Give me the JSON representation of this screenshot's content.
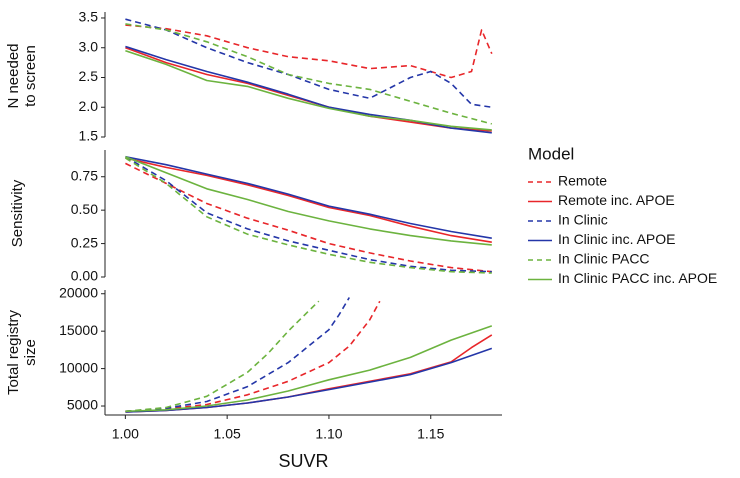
{
  "chart_data": {
    "type": "line",
    "xlabel": "SUVR",
    "xlim": [
      0.99,
      1.185
    ],
    "xticks": [
      "1.00",
      "1.05",
      "1.10",
      "1.15"
    ],
    "xtick_values": [
      1.0,
      1.05,
      1.1,
      1.15
    ],
    "legend": {
      "title": "Model",
      "placement": "right",
      "entries": [
        {
          "label": "Remote",
          "color": "#e8262a",
          "dash": "dashed"
        },
        {
          "label": "Remote inc. APOE",
          "color": "#e8262a",
          "dash": "solid"
        },
        {
          "label": "In Clinic",
          "color": "#2436a8",
          "dash": "dashed"
        },
        {
          "label": "In Clinic inc. APOE",
          "color": "#2436a8",
          "dash": "solid"
        },
        {
          "label": "In Clinic PACC",
          "color": "#6cb33f",
          "dash": "dashed"
        },
        {
          "label": "In Clinic PACC inc. APOE",
          "color": "#6cb33f",
          "dash": "solid"
        }
      ]
    },
    "panels": [
      {
        "ylabel": [
          "N needed",
          "to screen"
        ],
        "ylim": [
          1.5,
          3.55
        ],
        "yticks": [
          "1.5",
          "2.0",
          "2.5",
          "3.0",
          "3.5"
        ],
        "ytick_values": [
          1.5,
          2.0,
          2.5,
          3.0,
          3.5
        ],
        "series": [
          {
            "name": "Remote",
            "x": [
              1.0,
              1.02,
              1.04,
              1.06,
              1.08,
              1.1,
              1.12,
              1.14,
              1.15,
              1.16,
              1.17,
              1.175,
              1.18
            ],
            "y": [
              3.38,
              3.32,
              3.2,
              3.0,
              2.85,
              2.78,
              2.65,
              2.7,
              2.6,
              2.5,
              2.6,
              3.3,
              2.9
            ]
          },
          {
            "name": "Remote inc. APOE",
            "x": [
              1.0,
              1.02,
              1.04,
              1.06,
              1.08,
              1.1,
              1.12,
              1.14,
              1.16,
              1.18
            ],
            "y": [
              3.0,
              2.75,
              2.55,
              2.4,
              2.2,
              2.0,
              1.85,
              1.75,
              1.65,
              1.6
            ]
          },
          {
            "name": "In Clinic",
            "x": [
              1.0,
              1.02,
              1.04,
              1.06,
              1.08,
              1.1,
              1.12,
              1.14,
              1.15,
              1.16,
              1.17,
              1.18
            ],
            "y": [
              3.48,
              3.3,
              3.0,
              2.75,
              2.55,
              2.3,
              2.15,
              2.5,
              2.6,
              2.4,
              2.05,
              2.0
            ]
          },
          {
            "name": "In Clinic inc. APOE",
            "x": [
              1.0,
              1.02,
              1.04,
              1.06,
              1.08,
              1.1,
              1.12,
              1.14,
              1.16,
              1.18
            ],
            "y": [
              3.02,
              2.8,
              2.6,
              2.42,
              2.22,
              2.0,
              1.88,
              1.78,
              1.65,
              1.57
            ]
          },
          {
            "name": "In Clinic PACC",
            "x": [
              1.0,
              1.02,
              1.04,
              1.06,
              1.08,
              1.1,
              1.12,
              1.14,
              1.16,
              1.18
            ],
            "y": [
              3.4,
              3.3,
              3.1,
              2.85,
              2.55,
              2.4,
              2.3,
              2.1,
              1.9,
              1.72
            ]
          },
          {
            "name": "In Clinic PACC inc. APOE",
            "x": [
              1.0,
              1.02,
              1.04,
              1.06,
              1.08,
              1.1,
              1.12,
              1.14,
              1.16,
              1.18
            ],
            "y": [
              2.95,
              2.72,
              2.45,
              2.35,
              2.15,
              1.98,
              1.85,
              1.78,
              1.68,
              1.62
            ]
          }
        ]
      },
      {
        "ylabel": [
          "Sensitivity"
        ],
        "ylim": [
          0.0,
          0.95
        ],
        "yticks": [
          "0.00",
          "0.25",
          "0.50",
          "0.75"
        ],
        "ytick_values": [
          0.0,
          0.25,
          0.5,
          0.75
        ],
        "series": [
          {
            "name": "Remote",
            "x": [
              1.0,
              1.02,
              1.04,
              1.06,
              1.08,
              1.1,
              1.12,
              1.14,
              1.16,
              1.18
            ],
            "y": [
              0.85,
              0.7,
              0.55,
              0.44,
              0.35,
              0.25,
              0.18,
              0.12,
              0.07,
              0.04
            ]
          },
          {
            "name": "Remote inc. APOE",
            "x": [
              1.0,
              1.02,
              1.04,
              1.06,
              1.08,
              1.1,
              1.12,
              1.14,
              1.16,
              1.18
            ],
            "y": [
              0.89,
              0.82,
              0.76,
              0.69,
              0.61,
              0.52,
              0.46,
              0.38,
              0.31,
              0.26
            ]
          },
          {
            "name": "In Clinic",
            "x": [
              1.0,
              1.02,
              1.04,
              1.06,
              1.08,
              1.1,
              1.12,
              1.14,
              1.16,
              1.18
            ],
            "y": [
              0.9,
              0.72,
              0.48,
              0.36,
              0.27,
              0.2,
              0.13,
              0.08,
              0.05,
              0.04
            ]
          },
          {
            "name": "In Clinic inc. APOE",
            "x": [
              1.0,
              1.02,
              1.04,
              1.06,
              1.08,
              1.1,
              1.12,
              1.14,
              1.16,
              1.18
            ],
            "y": [
              0.9,
              0.84,
              0.77,
              0.7,
              0.62,
              0.53,
              0.47,
              0.4,
              0.34,
              0.29
            ]
          },
          {
            "name": "In Clinic PACC",
            "x": [
              1.0,
              1.02,
              1.04,
              1.06,
              1.08,
              1.1,
              1.12,
              1.14,
              1.16,
              1.18
            ],
            "y": [
              0.89,
              0.7,
              0.45,
              0.32,
              0.24,
              0.17,
              0.11,
              0.07,
              0.04,
              0.03
            ]
          },
          {
            "name": "In Clinic PACC inc. APOE",
            "x": [
              1.0,
              1.02,
              1.04,
              1.06,
              1.08,
              1.1,
              1.12,
              1.14,
              1.16,
              1.18
            ],
            "y": [
              0.9,
              0.78,
              0.66,
              0.58,
              0.49,
              0.42,
              0.36,
              0.31,
              0.27,
              0.24
            ]
          }
        ]
      },
      {
        "ylabel": [
          "Total registry",
          "size"
        ],
        "ylim": [
          3800,
          20500
        ],
        "yticks": [
          "5000",
          "10000",
          "15000",
          "20000"
        ],
        "ytick_values": [
          5000,
          10000,
          15000,
          20000
        ],
        "series": [
          {
            "name": "Remote",
            "x": [
              1.0,
              1.02,
              1.04,
              1.06,
              1.08,
              1.1,
              1.11,
              1.12,
              1.125
            ],
            "y": [
              4300,
              4600,
              5200,
              6500,
              8300,
              10800,
              13000,
              16500,
              19000
            ]
          },
          {
            "name": "Remote inc. APOE",
            "x": [
              1.0,
              1.02,
              1.04,
              1.06,
              1.08,
              1.1,
              1.12,
              1.14,
              1.16,
              1.17,
              1.18
            ],
            "y": [
              4200,
              4400,
              4800,
              5400,
              6200,
              7300,
              8300,
              9300,
              10900,
              12800,
              14500
            ]
          },
          {
            "name": "In Clinic",
            "x": [
              1.0,
              1.02,
              1.04,
              1.06,
              1.08,
              1.09,
              1.1,
              1.105,
              1.11
            ],
            "y": [
              4300,
              4700,
              5600,
              7600,
              10800,
              13000,
              15200,
              17200,
              19500
            ]
          },
          {
            "name": "In Clinic inc. APOE",
            "x": [
              1.0,
              1.02,
              1.04,
              1.06,
              1.08,
              1.1,
              1.12,
              1.14,
              1.16,
              1.18
            ],
            "y": [
              4200,
              4400,
              4800,
              5400,
              6200,
              7200,
              8200,
              9200,
              10800,
              12700
            ]
          },
          {
            "name": "In Clinic PACC",
            "x": [
              1.0,
              1.02,
              1.04,
              1.06,
              1.07,
              1.08,
              1.09,
              1.095
            ],
            "y": [
              4300,
              4800,
              6300,
              9500,
              12000,
              15000,
              17700,
              19000
            ]
          },
          {
            "name": "In Clinic PACC inc. APOE",
            "x": [
              1.0,
              1.02,
              1.04,
              1.06,
              1.08,
              1.1,
              1.12,
              1.14,
              1.16,
              1.18
            ],
            "y": [
              4300,
              4500,
              5000,
              5800,
              7000,
              8500,
              9800,
              11500,
              13800,
              15700
            ]
          }
        ]
      }
    ]
  }
}
